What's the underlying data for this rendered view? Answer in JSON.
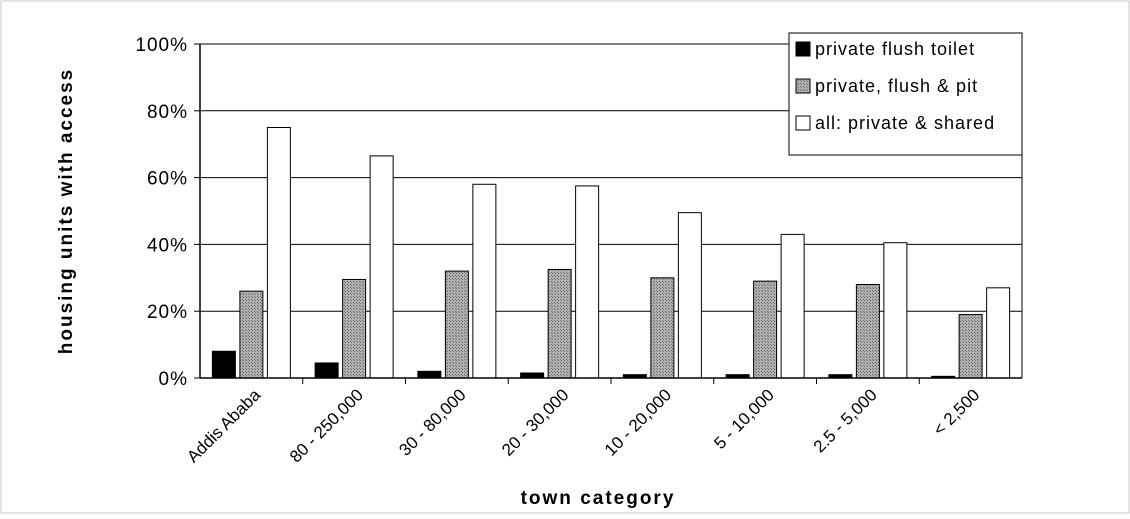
{
  "chart_data": {
    "type": "bar",
    "title": "",
    "xlabel": "town category",
    "ylabel": "housing units with access",
    "categories": [
      "Addis Ababa",
      "80 - 250,000",
      "30 - 80,000",
      "20 - 30,000",
      "10 - 20,000",
      "5 - 10,000",
      "2.5 - 5,000",
      "< 2,500"
    ],
    "series": [
      {
        "name": "private flush toilet",
        "values": [
          8,
          4.5,
          2,
          1.5,
          1,
          1,
          1,
          0.5
        ],
        "color": "#000000"
      },
      {
        "name": "private, flush & pit",
        "values": [
          26,
          29.5,
          32,
          32.5,
          30,
          29,
          28,
          19
        ],
        "color": "#a6a6a6"
      },
      {
        "name": "all: private & shared",
        "values": [
          75,
          66.5,
          58,
          57.5,
          49.5,
          43,
          40.5,
          27
        ],
        "color": "#ffffff"
      }
    ],
    "ylim": [
      0,
      100
    ],
    "yticks": [
      "0%",
      "20%",
      "40%",
      "60%",
      "80%",
      "100%"
    ],
    "grid": true,
    "legend_position": "top-right"
  }
}
